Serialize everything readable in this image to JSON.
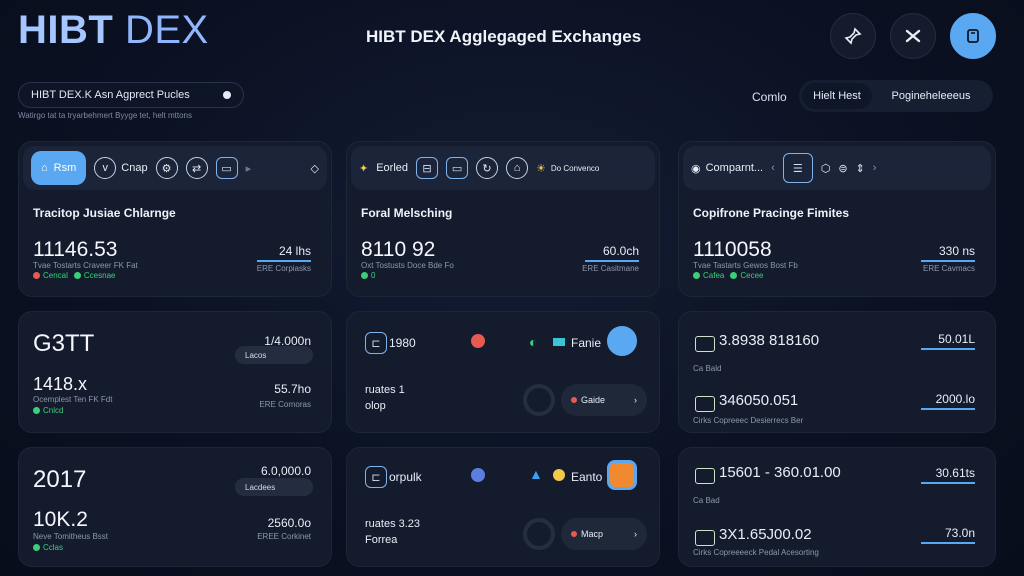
{
  "app": {
    "brand_bold": "HIBT",
    "brand_light": " DEX",
    "title": "HIBT DEX Agglegaged Exchanges"
  },
  "top_icons": [
    "pin-icon",
    "close-icon",
    "wallet-icon"
  ],
  "search": {
    "value": "HIBT DEX.K Asn Agprect Pucles",
    "caption": "Watirgo tat ta tryarbehmert Byyge tet, helt mttons"
  },
  "segment": {
    "label": "Comlo",
    "options": [
      "Hielt Hest",
      "Pogineheleeeus"
    ]
  },
  "cards": {
    "c1": {
      "toolbar": [
        "Rsm",
        "Cnap",
        "",
        "",
        ""
      ],
      "title": "Tracitop Jusiae Chlarnge",
      "value": "11146.53",
      "right_value": "24 lhs",
      "right_sub": "ERE Corpiasks",
      "meta": "Tvae Tostarts Craveer FK Fat",
      "tags": [
        "Cencal",
        "Ccesnae"
      ]
    },
    "c2": {
      "toolbar": [
        "Eorled",
        "",
        "",
        "",
        "Do Convenco"
      ],
      "title": "Foral Melsching",
      "value": "8110 92",
      "right_value": "60.0ch",
      "right_sub": "ERE Casitmane",
      "meta": "Oxt Tostusts Doce Bde Fo",
      "tags": [
        "0"
      ]
    },
    "c3": {
      "toolbar": [
        "Comparnt...",
        "",
        "",
        "",
        ""
      ],
      "title": "Copifrone Pracinge Fimites",
      "value": "1110058",
      "right_value": "330 ns",
      "right_sub": "ERE Cavmacs",
      "meta": "Tvae Tastarts Gewos Bost Fb",
      "tags": [
        "Cafea",
        "Cecee"
      ]
    },
    "c4": {
      "value": "G3TT",
      "right_value": "1/4.000n",
      "pill": "Lacos",
      "value2": "1418.x",
      "right_value2": "55.7ho",
      "right_sub2": "ERE Cornoras",
      "meta": "Ocemplest Ten FK Fdt",
      "tags": [
        "Cnlcd"
      ]
    },
    "c5": {
      "id": "1980",
      "label": "Fanie",
      "line1": "ruates 1",
      "line2": "olop",
      "btn": "Gaide"
    },
    "c6": {
      "row1": "3.8938 818160",
      "row1_right": "50.01L",
      "row1_sub": "Ca Bald",
      "row2": "346050.051",
      "row2_right": "2000.lo",
      "row2_sub": "Cirks Copreeec Desierrecs Ber"
    },
    "c7": {
      "value": "2017",
      "right_value": "6.0,000.0",
      "pill": "Lacdees",
      "value2": "10K.2",
      "right_value2": "2560.0o",
      "right_sub2": "EREE Corkinet",
      "meta": "Neve Tomitheus Bsst",
      "tags": [
        "Cclas"
      ]
    },
    "c8": {
      "id": "orpulk",
      "label": "Eanto",
      "line1": "ruates 3.23",
      "line2": "Forrea",
      "btn": "Macp"
    },
    "c9": {
      "row1": "15601 - 360.01.00",
      "row1_right": "30.61ts",
      "row1_sub": "Ca Bad",
      "row2": "3X1.65J00.02",
      "row2_right": "73.0n",
      "row2_sub": "Cirks Copreeeeck Pedal Acesorting"
    }
  }
}
